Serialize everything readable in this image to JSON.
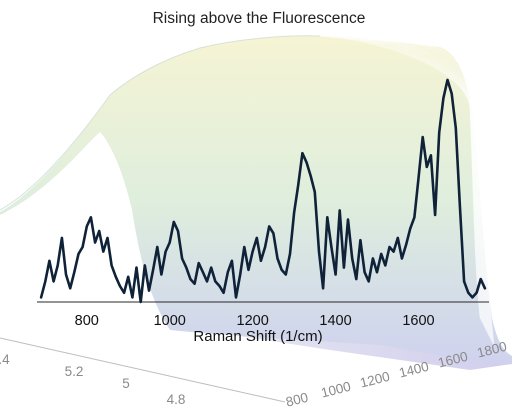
{
  "chart_data": {
    "type": "line",
    "title": "Rising above the Fluorescence",
    "xlabel": "Raman Shift (1/cm)",
    "ylabel": "",
    "xlim": [
      680,
      1770
    ],
    "ylim": [
      0,
      1
    ],
    "grid": false,
    "x_ticks": [
      "800",
      "1000",
      "1200",
      "1400",
      "1600"
    ],
    "series": [
      {
        "color": "#0f2238",
        "x": [
          690,
          700,
          710,
          720,
          730,
          740,
          750,
          760,
          770,
          780,
          790,
          800,
          810,
          820,
          830,
          840,
          850,
          860,
          870,
          880,
          890,
          900,
          910,
          920,
          930,
          940,
          950,
          960,
          970,
          980,
          990,
          1000,
          1010,
          1020,
          1030,
          1040,
          1050,
          1060,
          1070,
          1080,
          1090,
          1100,
          1110,
          1120,
          1130,
          1140,
          1150,
          1160,
          1170,
          1180,
          1190,
          1200,
          1210,
          1220,
          1230,
          1240,
          1250,
          1260,
          1270,
          1280,
          1290,
          1300,
          1310,
          1320,
          1330,
          1340,
          1350,
          1360,
          1370,
          1380,
          1390,
          1400,
          1410,
          1420,
          1430,
          1440,
          1450,
          1460,
          1470,
          1480,
          1490,
          1500,
          1510,
          1520,
          1530,
          1540,
          1550,
          1560,
          1570,
          1580,
          1590,
          1600,
          1610,
          1620,
          1630,
          1640,
          1650,
          1660,
          1670,
          1680,
          1690,
          1700,
          1710,
          1720,
          1730,
          1740,
          1750,
          1760
        ],
        "y": [
          0.02,
          0.09,
          0.18,
          0.09,
          0.16,
          0.28,
          0.12,
          0.06,
          0.13,
          0.21,
          0.24,
          0.33,
          0.37,
          0.26,
          0.31,
          0.22,
          0.28,
          0.16,
          0.11,
          0.07,
          0.04,
          0.11,
          0.02,
          0.15,
          0.0,
          0.16,
          0.05,
          0.14,
          0.24,
          0.12,
          0.22,
          0.26,
          0.35,
          0.31,
          0.19,
          0.15,
          0.1,
          0.08,
          0.17,
          0.13,
          0.09,
          0.15,
          0.09,
          0.07,
          0.04,
          0.13,
          0.18,
          0.02,
          0.12,
          0.24,
          0.14,
          0.22,
          0.28,
          0.18,
          0.24,
          0.33,
          0.3,
          0.19,
          0.14,
          0.12,
          0.21,
          0.39,
          0.51,
          0.65,
          0.61,
          0.55,
          0.48,
          0.22,
          0.06,
          0.37,
          0.24,
          0.12,
          0.4,
          0.15,
          0.36,
          0.19,
          0.1,
          0.27,
          0.13,
          0.09,
          0.19,
          0.13,
          0.21,
          0.16,
          0.24,
          0.22,
          0.28,
          0.19,
          0.25,
          0.32,
          0.37,
          0.54,
          0.72,
          0.59,
          0.64,
          0.38,
          0.74,
          0.89,
          0.97,
          0.91,
          0.76,
          0.41,
          0.09,
          0.04,
          0.02,
          0.04,
          0.1,
          0.06
        ]
      }
    ],
    "background_axes": {
      "x_ticks": [
        "800",
        "1000",
        "1200",
        "1400",
        "1600",
        "1800"
      ],
      "y_ticks": [
        ".4",
        "5.2",
        "5",
        "4.8"
      ]
    }
  }
}
